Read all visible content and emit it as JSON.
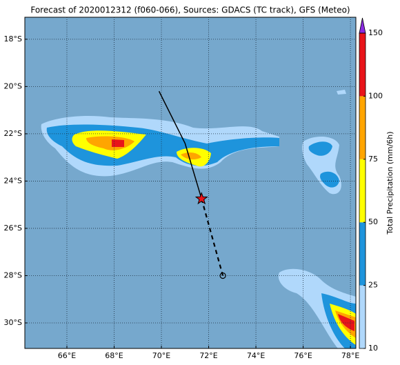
{
  "map": {
    "title": "Forecast of 2020012312 (f060-066), Sources: GDACS (TC track), GFS (Meteo)",
    "lonlim": [
      64.22,
      78.23
    ],
    "latlim": [
      -31.08,
      -17.07
    ],
    "lonticks": [
      {
        "value": 66,
        "label": "66°E"
      },
      {
        "value": 68,
        "label": "68°E"
      },
      {
        "value": 70,
        "label": "70°E"
      },
      {
        "value": 72,
        "label": "72°E"
      },
      {
        "value": 74,
        "label": "74°E"
      },
      {
        "value": 76,
        "label": "76°E"
      },
      {
        "value": 78,
        "label": "78°E"
      }
    ],
    "latticks": [
      {
        "value": -18,
        "label": "18°S"
      },
      {
        "value": -20,
        "label": "20°S"
      },
      {
        "value": -22,
        "label": "22°S"
      },
      {
        "value": -24,
        "label": "24°S"
      },
      {
        "value": -26,
        "label": "26°S"
      },
      {
        "value": -28,
        "label": "28°S"
      },
      {
        "value": -30,
        "label": "30°S"
      }
    ],
    "grid": true,
    "track": {
      "observed": {
        "lon": [
          69.9,
          71.0,
          71.7
        ],
        "lat": [
          -20.2,
          -22.4,
          -24.75
        ],
        "color": "#000000"
      },
      "forecast": {
        "lon": [
          71.7,
          72.6
        ],
        "lat": [
          -24.75,
          -28.0
        ],
        "color": "#000000"
      }
    },
    "colorbar": {
      "label": "Total Precipitation (mm/6h)",
      "levels": [
        10,
        25,
        50,
        75,
        100,
        150
      ],
      "colors": [
        "#b0d8fb",
        "#1e94dc",
        "#ffff00",
        "#ffa500",
        "#e8141a"
      ],
      "extend_color": "#8a2be2"
    }
  }
}
